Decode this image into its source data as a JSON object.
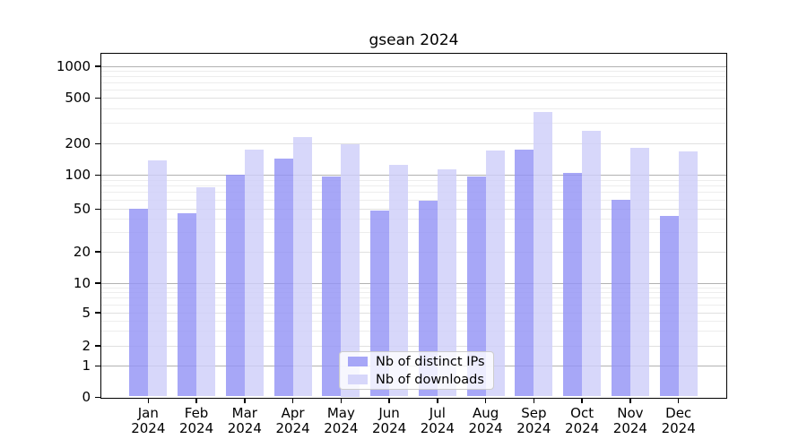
{
  "figure": {
    "background": "#ffffff"
  },
  "chart_data": {
    "type": "bar",
    "title": "gsean 2024",
    "categories": [
      "Jan 2024",
      "Feb 2024",
      "Mar 2024",
      "Apr 2024",
      "May 2024",
      "Jun 2024",
      "Jul 2024",
      "Aug 2024",
      "Sep 2024",
      "Oct 2024",
      "Nov 2024",
      "Dec 2024"
    ],
    "series": [
      {
        "name": "Nb of distinct IPs",
        "color": "#a9a9f7",
        "values": [
          50,
          46,
          102,
          145,
          97,
          48,
          59,
          97,
          175,
          105,
          60,
          43
        ]
      },
      {
        "name": "Nb of downloads",
        "color": "#d9d9f7",
        "values": [
          140,
          78,
          175,
          230,
          200,
          126,
          113,
          172,
          380,
          260,
          182,
          168
        ]
      }
    ],
    "xlabel": "",
    "ylabel": "",
    "yscale": "symlog",
    "y_ticks": [
      0,
      1,
      2,
      5,
      10,
      20,
      50,
      100,
      200,
      500,
      1000
    ],
    "ylim": [
      0,
      1300
    ],
    "grid": "horizontal, log major and minor lines",
    "legend_position": "lower center"
  }
}
